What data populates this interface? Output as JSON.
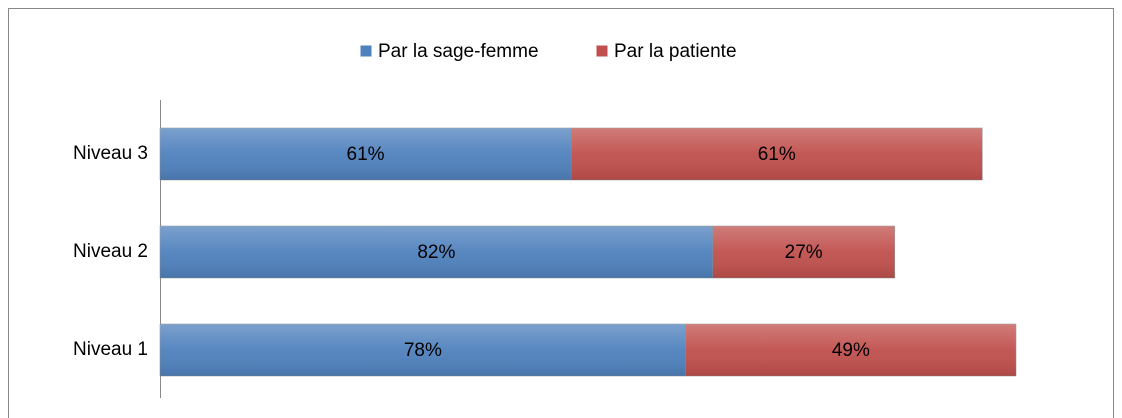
{
  "chart_data": {
    "type": "stacked_bar_horizontal",
    "categories": [
      "Niveau 3",
      "Niveau 2",
      "Niveau 1"
    ],
    "series": [
      {
        "name": "Par la sage-femme",
        "color": "#4f81bd",
        "values": [
          61,
          82,
          78
        ],
        "value_labels": [
          "61%",
          "82%",
          "78%"
        ]
      },
      {
        "name": "Par la patiente",
        "color": "#c0504d",
        "values": [
          61,
          27,
          49
        ],
        "value_labels": [
          "61%",
          "27%",
          "49%"
        ]
      }
    ],
    "legend": "top"
  }
}
